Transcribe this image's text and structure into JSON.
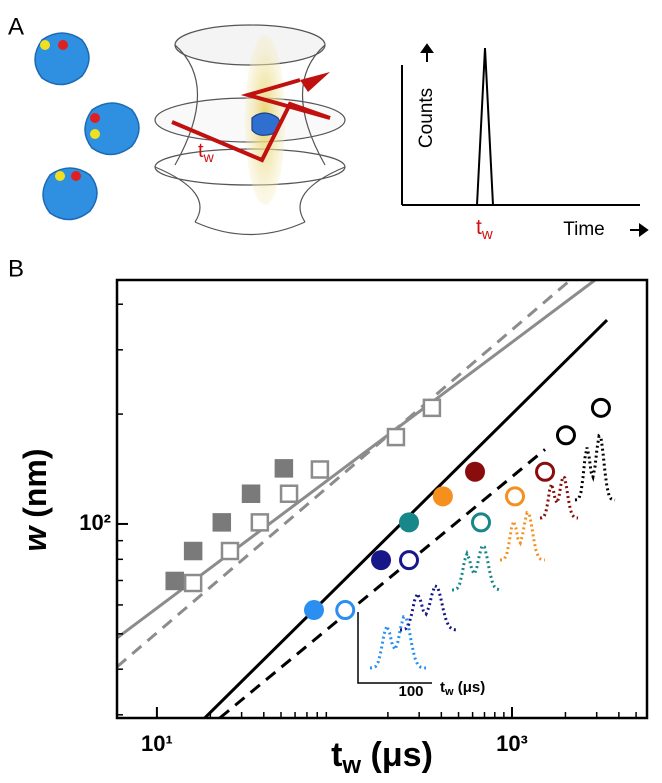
{
  "panel_a": {
    "label": "A",
    "counts": "Counts",
    "time": "Time",
    "tw_graph": [
      "t",
      "w"
    ],
    "tw_diagram": [
      "t",
      "w"
    ]
  },
  "chart_data": {
    "type": "scatter",
    "panel_label": "B",
    "log_x": true,
    "log_y": true,
    "xlabel": [
      "t",
      "w",
      " (μs)"
    ],
    "ylabel": [
      "w",
      " (nm)"
    ],
    "xlim": [
      5.96,
      5760
    ],
    "ylim": [
      29.4,
      466
    ],
    "xticks": [
      {
        "value": 10,
        "label": "10¹"
      },
      {
        "value": 1000,
        "label": "10³"
      }
    ],
    "yticks": [
      {
        "value": 100,
        "label": "10²"
      }
    ],
    "xminorticks": [
      20,
      30,
      40,
      50,
      60,
      70,
      80,
      90,
      200,
      300,
      400,
      500,
      600,
      700,
      800,
      900,
      2000,
      3000,
      4000,
      5000
    ],
    "yminorticks": [
      30,
      40,
      50,
      60,
      70,
      80,
      90,
      200,
      300,
      400
    ],
    "series": [
      {
        "style": "line",
        "dashed": false,
        "color": "#8c8c8c",
        "x": [
          5.96,
          2937
        ],
        "values": [
          48.7,
          466
        ]
      },
      {
        "style": "line",
        "dashed": true,
        "color": "#8c8c8c",
        "x": [
          5.96,
          2067
        ],
        "values": [
          40.6,
          460
        ]
      },
      {
        "style": "line",
        "dashed": false,
        "color": "#000000",
        "x": [
          18.6,
          3429
        ],
        "values": [
          29.4,
          362
        ]
      },
      {
        "style": "line",
        "dashed": true,
        "color": "#000000",
        "x": [
          22.6,
          1535
        ],
        "values": [
          29.4,
          160
        ]
      },
      {
        "style": "square",
        "filled": true,
        "color": "#7a7a7a",
        "x": [
          12.6,
          16,
          23.2,
          33.9,
          51.9
        ],
        "values": [
          69.8,
          84.3,
          101,
          121,
          142
        ]
      },
      {
        "style": "square",
        "filled": false,
        "color": "#8c8c8c",
        "x": [
          16,
          25.8,
          38,
          55.5,
          82.8,
          222,
          354
        ],
        "values": [
          68.9,
          84.3,
          101,
          121,
          141,
          173,
          208
        ]
      },
      {
        "style": "circle",
        "filled": true,
        "colors": [
          "#2a8ff0",
          "#17178a",
          "#17878a",
          "#f5901e",
          "#8a0d0d"
        ],
        "x": [
          76.7,
          183,
          263,
          408,
          619
        ],
        "values": [
          58.1,
          79.6,
          101,
          119,
          139
        ]
      },
      {
        "style": "circle",
        "filled": false,
        "colors": [
          "#2a8ff0",
          "#17178a",
          "#17878a",
          "#f5901e",
          "#8a0d0d",
          "#000000",
          "#000000"
        ],
        "x": [
          115,
          263,
          669,
          1040,
          1535,
          2014,
          3170
        ],
        "values": [
          58.1,
          79.6,
          101,
          119,
          139,
          175,
          208
        ]
      }
    ],
    "inset": {
      "tick": "100",
      "label": [
        "t",
        "w",
        " (μs)"
      ]
    }
  }
}
